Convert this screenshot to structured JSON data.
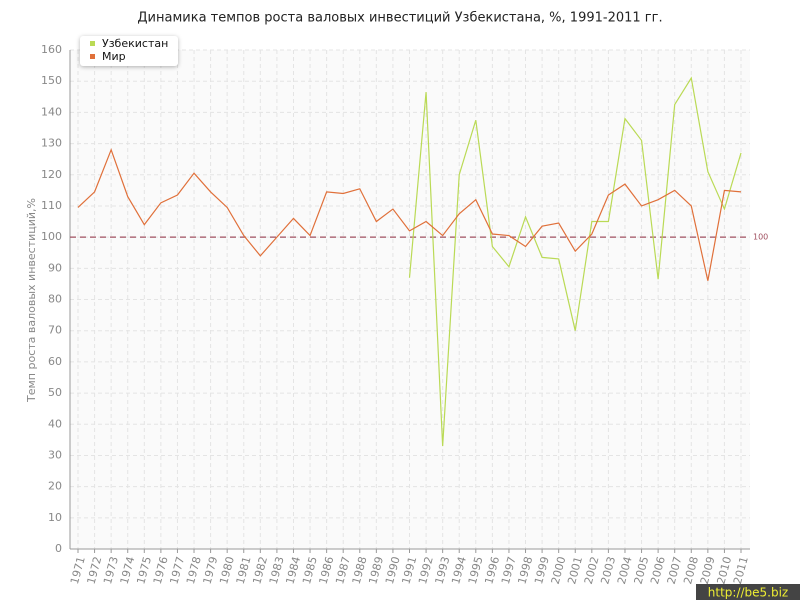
{
  "chart_data": {
    "type": "line",
    "title": "Динамика темпов роста валовых инвестиций Узбекистана, %, 1991-2011 гг.",
    "y_label": "Темп роста валовых инвестиций,%",
    "categories": [
      "1971",
      "1972",
      "1973",
      "1974",
      "1975",
      "1976",
      "1977",
      "1978",
      "1979",
      "1980",
      "1981",
      "1982",
      "1983",
      "1984",
      "1985",
      "1986",
      "1987",
      "1988",
      "1989",
      "1990",
      "1991",
      "1992",
      "1993",
      "1994",
      "1995",
      "1996",
      "1997",
      "1998",
      "1999",
      "2000",
      "2001",
      "2002",
      "2003",
      "2004",
      "2005",
      "2006",
      "2007",
      "2008",
      "2009",
      "2010",
      "2011"
    ],
    "series": [
      {
        "name": "Узбекистан",
        "color": "#bada55",
        "values": [
          null,
          null,
          null,
          null,
          null,
          null,
          null,
          null,
          null,
          null,
          null,
          null,
          null,
          null,
          null,
          null,
          null,
          null,
          null,
          null,
          87,
          146.5,
          33,
          120,
          137.5,
          97,
          90.5,
          106.5,
          93.5,
          93,
          70,
          105,
          105,
          138,
          131,
          86.5,
          142.5,
          151,
          121,
          109,
          127
        ]
      },
      {
        "name": "Мир",
        "color": "#e0703a",
        "values": [
          109.5,
          114.5,
          128,
          113,
          104,
          111,
          113.5,
          120.5,
          114.5,
          109.5,
          100.5,
          94,
          100,
          106,
          100.5,
          114.5,
          114,
          115.5,
          105,
          109,
          102,
          105,
          100.5,
          107.5,
          112,
          101,
          100.5,
          97,
          103.5,
          104.5,
          95.5,
          101,
          113.5,
          117,
          110,
          112,
          115,
          110,
          86,
          115,
          114.5
        ]
      }
    ],
    "reference_line": 100,
    "ylim": [
      0,
      160
    ],
    "yticks": [
      0,
      10,
      20,
      30,
      40,
      50,
      60,
      70,
      80,
      90,
      100,
      110,
      120,
      130,
      140,
      150,
      160
    ],
    "grid": true,
    "legend": "top-left",
    "watermark": "http://be5.biz"
  }
}
